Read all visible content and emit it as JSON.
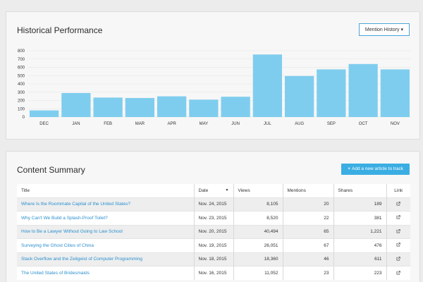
{
  "performance": {
    "title": "Historical Performance",
    "mention_button": "Mention History",
    "chart_data": {
      "type": "bar",
      "categories": [
        "DEC",
        "JAN",
        "FEB",
        "MAR",
        "APR",
        "MAY",
        "JUN",
        "JUL",
        "AUG",
        "SEP",
        "OCT",
        "NOV"
      ],
      "values": [
        80,
        290,
        235,
        230,
        250,
        210,
        245,
        755,
        495,
        575,
        640,
        575
      ],
      "yticks": [
        0,
        100,
        200,
        300,
        400,
        500,
        600,
        700,
        800
      ],
      "ylim": [
        0,
        800
      ],
      "bar_color": "#7fcdee",
      "grid": true
    }
  },
  "summary": {
    "title": "Content Summary",
    "add_button": "Add a new article to track",
    "columns": {
      "title": "Title",
      "date": "Date",
      "views": "Views",
      "mentions": "Mentions",
      "shares": "Shares",
      "link": "Link"
    },
    "rows": [
      {
        "title": "Where Is the Roommate Capital of the United States?",
        "date": "Nov. 24, 2015",
        "views": "8,105",
        "mentions": "20",
        "shares": "189"
      },
      {
        "title": "Why Can't We Build a Splash-Proof Toilet?",
        "date": "Nov. 23, 2015",
        "views": "8,520",
        "mentions": "22",
        "shares": "381"
      },
      {
        "title": "How to Be a Lawyer Without Going to Law School",
        "date": "Nov. 20, 2015",
        "views": "40,494",
        "mentions": "65",
        "shares": "1,221"
      },
      {
        "title": "Surveying the Ghost Cities of China",
        "date": "Nov. 19, 2015",
        "views": "26,051",
        "mentions": "67",
        "shares": "476"
      },
      {
        "title": "Stack Overflow and the Zeitgeist of Computer Programming",
        "date": "Nov. 18, 2015",
        "views": "18,360",
        "mentions": "46",
        "shares": "611"
      },
      {
        "title": "The United States of Bridesmaids",
        "date": "Nov. 16, 2015",
        "views": "11,052",
        "mentions": "23",
        "shares": "223"
      }
    ],
    "link_icon": "external-link-icon",
    "link_color": "#2a8fcf"
  }
}
